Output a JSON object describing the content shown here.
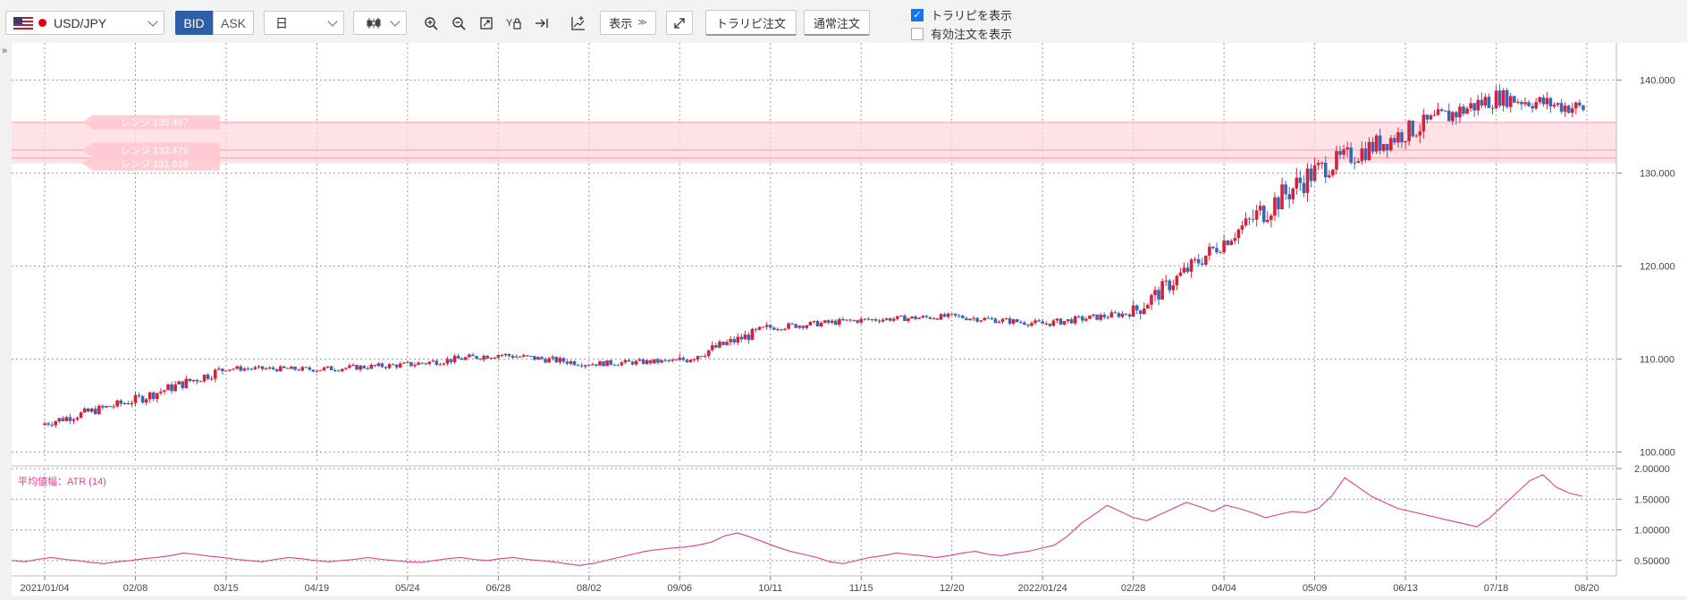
{
  "toolbar": {
    "pair": "USD/JPY",
    "bid_label": "BID",
    "ask_label": "ASK",
    "period": "日",
    "show_label": "表示",
    "trap_order_label": "トラリピ注文",
    "normal_order_label": "通常注文",
    "show_trap_label": "トラリピを表示",
    "show_trap_checked": true,
    "show_valid_orders_label": "有効注文を表示",
    "show_valid_orders_checked": false
  },
  "collapse_label": "»",
  "colors": {
    "up": "#d6213b",
    "down": "#3a66b7",
    "atr_line": "#e23b8f",
    "range_band": "#ffd8dc"
  },
  "range_lines": [
    {
      "label": "レンジ 135.467",
      "price": 135.467
    },
    {
      "label": "レンジ 132.479",
      "price": 132.479
    },
    {
      "label": "レンジ 131.616",
      "price": 131.616
    }
  ],
  "chart_data": [
    {
      "type": "candlestick",
      "title": "",
      "y_ticks": [
        "100.000",
        "110.000",
        "120.000",
        "130.000",
        "140.000"
      ],
      "ylim": [
        99,
        144
      ],
      "x_ticks": [
        "2021/01/04",
        "02/08",
        "03/15",
        "04/19",
        "05/24",
        "06/28",
        "08/02",
        "09/06",
        "10/11",
        "11/15",
        "12/20",
        "2022/01/24",
        "02/28",
        "04/04",
        "05/09",
        "06/13",
        "07/18",
        "08/20"
      ],
      "grid": true,
      "close_by_x_tick": [
        103.1,
        105.6,
        109.0,
        108.9,
        109.4,
        110.5,
        109.5,
        109.8,
        113.4,
        114.2,
        114.6,
        113.8,
        115.0,
        122.7,
        130.2,
        134.4,
        138.2,
        136.9
      ]
    },
    {
      "type": "line",
      "title": "平均値幅：ATR (14)",
      "y_ticks": [
        "0.50000",
        "1.00000",
        "1.50000",
        "2.00000"
      ],
      "ylim": [
        0.25,
        2.0
      ],
      "series": [
        {
          "values": [
            0.5,
            0.48,
            0.52,
            0.55,
            0.52,
            0.5,
            0.47,
            0.45,
            0.48,
            0.5,
            0.53,
            0.55,
            0.58,
            0.62,
            0.6,
            0.57,
            0.55,
            0.52,
            0.5,
            0.48,
            0.52,
            0.55,
            0.53,
            0.5,
            0.48,
            0.5,
            0.52,
            0.55,
            0.52,
            0.5,
            0.48,
            0.47,
            0.5,
            0.53,
            0.55,
            0.52,
            0.5,
            0.53,
            0.55,
            0.52,
            0.5,
            0.48,
            0.45,
            0.42,
            0.45,
            0.5,
            0.55,
            0.6,
            0.65,
            0.68,
            0.7,
            0.72,
            0.75,
            0.8,
            0.9,
            0.95,
            0.88,
            0.8,
            0.72,
            0.65,
            0.6,
            0.55,
            0.48,
            0.45,
            0.5,
            0.55,
            0.58,
            0.62,
            0.6,
            0.58,
            0.55,
            0.58,
            0.62,
            0.65,
            0.6,
            0.58,
            0.62,
            0.65,
            0.7,
            0.75,
            0.9,
            1.1,
            1.25,
            1.4,
            1.3,
            1.2,
            1.15,
            1.25,
            1.35,
            1.45,
            1.38,
            1.3,
            1.4,
            1.35,
            1.28,
            1.2,
            1.25,
            1.3,
            1.28,
            1.35,
            1.55,
            1.85,
            1.7,
            1.55,
            1.45,
            1.35,
            1.3,
            1.25,
            1.2,
            1.15,
            1.1,
            1.05,
            1.2,
            1.4,
            1.6,
            1.8,
            1.9,
            1.7,
            1.6,
            1.55
          ]
        }
      ]
    }
  ]
}
